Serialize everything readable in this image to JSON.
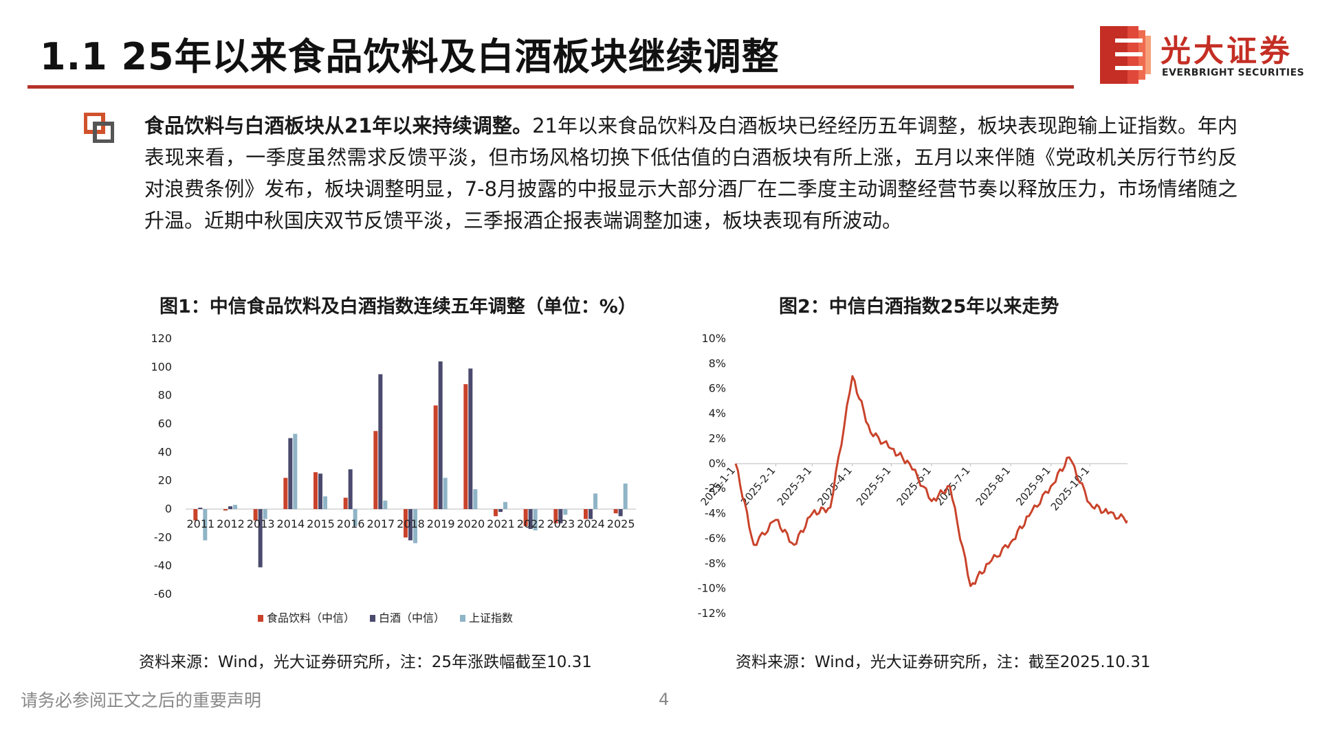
{
  "header": {
    "title": "1.1 25年以来食品饮料及白酒板块继续调整",
    "logo_cn": "光大证券",
    "logo_en": "EVERBRIGHT SECURITIES"
  },
  "body": {
    "lead": "食品饮料与白酒板块从21年以来持续调整。",
    "text": "21年以来食品饮料及白酒板块已经经历五年调整，板块表现跑输上证指数。年内表现来看，一季度虽然需求反馈平淡，但市场风格切换下低估值的白酒板块有所上涨，五月以来伴随《党政机关厉行节约反对浪费条例》发布，板块调整明显，7-8月披露的中报显示大部分酒厂在二季度主动调整经营节奏以释放压力，市场情绪随之升温。近期中秋国庆双节反馈平淡，三季报酒企报表端调整加速，板块表现有所波动。"
  },
  "figure1": {
    "caption": "图1：中信食品饮料及白酒指数连续五年调整（单位：%）",
    "source": "资料来源：Wind，光大证券研究所，注：25年涨跌幅截至10.31"
  },
  "figure2": {
    "caption": "图2：中信白酒指数25年以来走势",
    "source": "资料来源：Wind，光大证券研究所，注：截至2025.10.31"
  },
  "footer": {
    "disclaimer": "请务必参阅正文之后的重要声明",
    "page": "4"
  },
  "colors": {
    "accent": "#b5322a",
    "series1": "#c9432b",
    "series2": "#4b4a6e",
    "series3": "#8fb4c6",
    "line": "#c9432b"
  },
  "chart_data": [
    {
      "type": "bar",
      "categories": [
        "2011",
        "2012",
        "2013",
        "2014",
        "2015",
        "2016",
        "2017",
        "2018",
        "2019",
        "2020",
        "2021",
        "2022",
        "2023",
        "2024",
        "2025"
      ],
      "series": [
        {
          "name": "食品饮料（中信）",
          "values": [
            -8,
            -1,
            -8,
            22,
            26,
            8,
            55,
            -20,
            73,
            88,
            -5,
            -12,
            -10,
            -7,
            -3
          ]
        },
        {
          "name": "白酒（中信）",
          "values": [
            1,
            2,
            -41,
            50,
            25,
            28,
            95,
            -22,
            104,
            99,
            -2,
            -14,
            -10,
            -7,
            -5
          ]
        },
        {
          "name": "上证指数",
          "values": [
            -22,
            3,
            -7,
            53,
            9,
            -12,
            6,
            -24,
            22,
            14,
            5,
            -15,
            -4,
            11,
            18
          ]
        }
      ],
      "ylim": [
        -60,
        120
      ],
      "yticks": [
        "120",
        "100",
        "80",
        "60",
        "40",
        "20",
        "0",
        "-20",
        "-40",
        "-60"
      ],
      "legend": "bottom"
    },
    {
      "type": "line",
      "x": [
        "2025-1-1",
        "2025-1-15",
        "2025-2-1",
        "2025-2-15",
        "2025-3-1",
        "2025-3-15",
        "2025-4-1",
        "2025-4-15",
        "2025-5-1",
        "2025-5-15",
        "2025-6-1",
        "2025-6-15",
        "2025-7-1",
        "2025-7-15",
        "2025-8-1",
        "2025-8-15",
        "2025-9-1",
        "2025-9-15",
        "2025-10-1",
        "2025-10-15",
        "2025-10-31"
      ],
      "y": [
        0,
        -6.5,
        -4.5,
        -6.5,
        -4,
        -3.5,
        7,
        2.5,
        1.2,
        0,
        -3,
        -1.8,
        -9.8,
        -8,
        -6.3,
        -4.2,
        -1.8,
        0.5,
        -3.2,
        -4,
        -4.5
      ],
      "xticks": [
        "2025-1-1",
        "2025-2-1",
        "2025-3-1",
        "2025-4-1",
        "2025-5-1",
        "2025-6-1",
        "2025-7-1",
        "2025-8-1",
        "2025-9-1",
        "2025-10-1"
      ],
      "ylim": [
        -12,
        10
      ],
      "yticks": [
        "10%",
        "8%",
        "6%",
        "4%",
        "2%",
        "0%",
        "-2%",
        "-4%",
        "-6%",
        "-8%",
        "-10%",
        "-12%"
      ]
    }
  ]
}
